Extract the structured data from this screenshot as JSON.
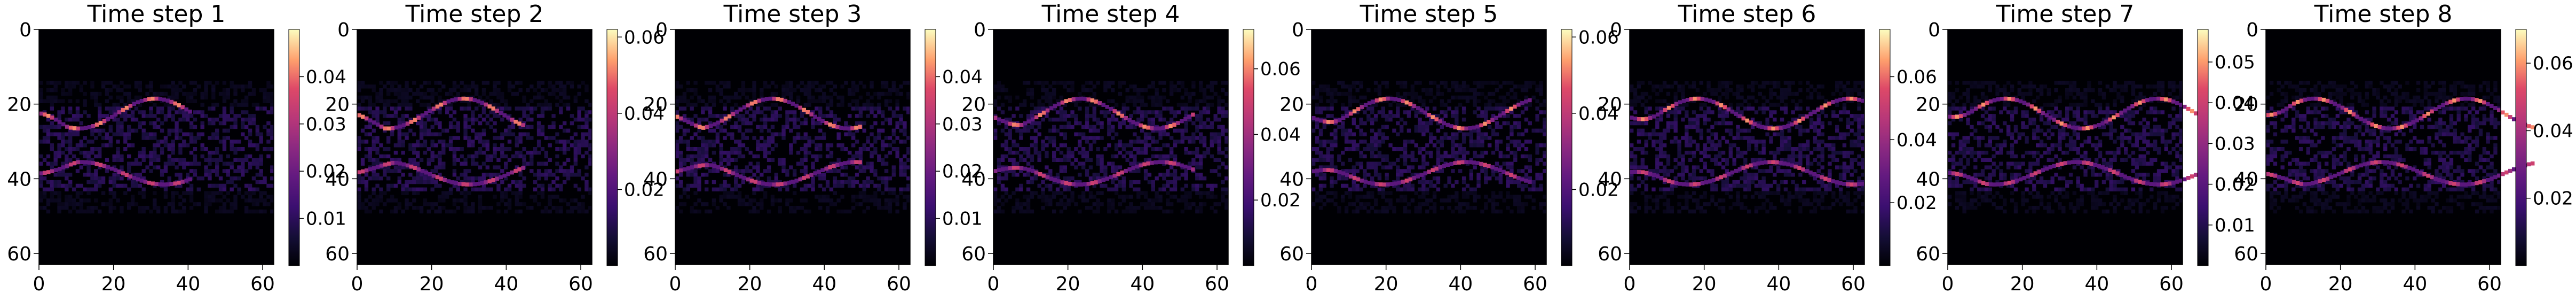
{
  "chart_data": {
    "type": "heatmap",
    "colormap": "magma",
    "panels": [
      {
        "title": "Time step 1",
        "xticks": [
          0,
          20,
          40,
          60
        ],
        "yticks": [
          0,
          20,
          40,
          60
        ],
        "xlim": [
          0,
          63
        ],
        "ylim": [
          63,
          0
        ],
        "vmin": 0,
        "vmax": 0.05,
        "cbar_ticks": [
          0.01,
          0.02,
          0.03,
          0.04
        ]
      },
      {
        "title": "Time step 2",
        "xticks": [
          0,
          20,
          40,
          60
        ],
        "yticks": [
          0,
          20,
          40,
          60
        ],
        "xlim": [
          0,
          63
        ],
        "ylim": [
          63,
          0
        ],
        "vmin": 0,
        "vmax": 0.062,
        "cbar_ticks": [
          0.02,
          0.04,
          0.06
        ]
      },
      {
        "title": "Time step 3",
        "xticks": [
          0,
          20,
          40,
          60
        ],
        "yticks": [
          0,
          20,
          40,
          60
        ],
        "xlim": [
          0,
          63
        ],
        "ylim": [
          63,
          0
        ],
        "vmin": 0,
        "vmax": 0.05,
        "cbar_ticks": [
          0.01,
          0.02,
          0.03,
          0.04
        ]
      },
      {
        "title": "Time step 4",
        "xticks": [
          0,
          20,
          40,
          60
        ],
        "yticks": [
          0,
          20,
          40,
          60
        ],
        "xlim": [
          0,
          63
        ],
        "ylim": [
          63,
          0
        ],
        "vmin": 0,
        "vmax": 0.072,
        "cbar_ticks": [
          0.02,
          0.04,
          0.06
        ]
      },
      {
        "title": "Time step 5",
        "xticks": [
          0,
          20,
          40,
          60
        ],
        "yticks": [
          0,
          20,
          40,
          60
        ],
        "xlim": [
          0,
          63
        ],
        "ylim": [
          63,
          0
        ],
        "vmin": 0,
        "vmax": 0.062,
        "cbar_ticks": [
          0.02,
          0.04,
          0.06
        ]
      },
      {
        "title": "Time step 6",
        "xticks": [
          0,
          20,
          40,
          60
        ],
        "yticks": [
          0,
          20,
          40,
          60
        ],
        "xlim": [
          0,
          63
        ],
        "ylim": [
          63,
          0
        ],
        "vmin": 0,
        "vmax": 0.075,
        "cbar_ticks": [
          0.02,
          0.04,
          0.06
        ]
      },
      {
        "title": "Time step 7",
        "xticks": [
          0,
          20,
          40,
          60
        ],
        "yticks": [
          0,
          20,
          40,
          60
        ],
        "xlim": [
          0,
          63
        ],
        "ylim": [
          63,
          0
        ],
        "vmin": 0,
        "vmax": 0.058,
        "cbar_ticks": [
          0.01,
          0.02,
          0.03,
          0.04,
          0.05
        ]
      },
      {
        "title": "Time step 8",
        "xticks": [
          0,
          20,
          40,
          60
        ],
        "yticks": [
          0,
          20,
          40,
          60
        ],
        "xlim": [
          0,
          63
        ],
        "ylim": [
          63,
          0
        ],
        "vmin": 0,
        "vmax": 0.07,
        "cbar_ticks": [
          0.02,
          0.04,
          0.06
        ]
      }
    ]
  }
}
